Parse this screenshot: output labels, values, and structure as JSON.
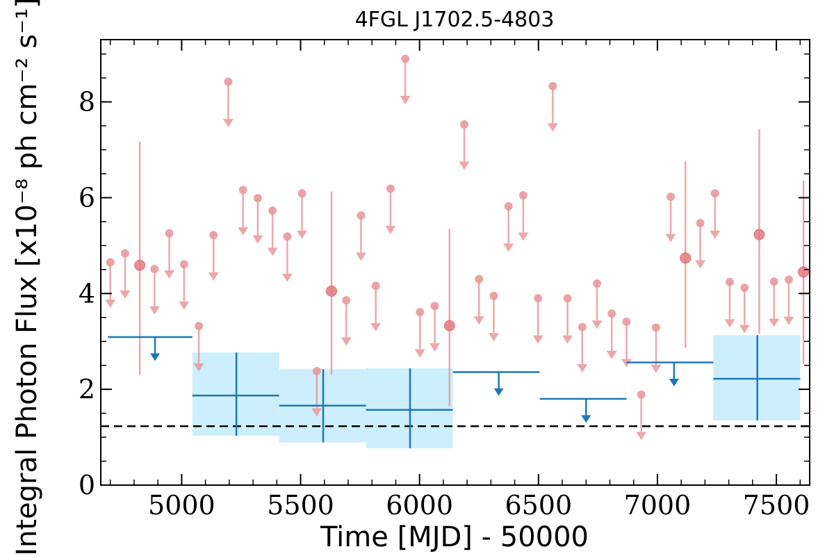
{
  "chart_data": {
    "type": "scatter",
    "title": "4FGL J1702.5-4803",
    "xlabel": "Time [MJD] - 50000",
    "ylabel": "Integral Photon Flux [x10⁻⁸ ph cm⁻² s⁻¹]",
    "xlim": [
      4660,
      7640
    ],
    "ylim": [
      0,
      9.3
    ],
    "xticks": [
      5000,
      5500,
      6000,
      6500,
      7000,
      7500
    ],
    "xtick_labels": [
      "5000",
      "5500",
      "6000",
      "6500",
      "7000",
      "7500"
    ],
    "yticks": [
      0,
      2,
      4,
      6,
      8
    ],
    "ytick_labels": [
      "0",
      "2",
      "4",
      "6",
      "8"
    ],
    "reference_line": 1.23,
    "colors": {
      "short_bins": "#e89a9e",
      "short_bins_detection": "#e57b80",
      "long_bins": "#1f77b4",
      "long_bins_band": "#cdeefc",
      "reference_line": "#000000"
    },
    "series": [
      {
        "points": [
          {
            "x": 4700,
            "y": 4.65,
            "upper_limit": true
          },
          {
            "x": 4762,
            "y": 4.84,
            "upper_limit": true
          },
          {
            "x": 4824,
            "y": 4.59,
            "yerr": [
              2.3,
              7.17
            ]
          },
          {
            "x": 4886,
            "y": 4.51,
            "upper_limit": true
          },
          {
            "x": 4948,
            "y": 5.26,
            "upper_limit": true
          },
          {
            "x": 5010,
            "y": 4.61,
            "upper_limit": true
          },
          {
            "x": 5072,
            "y": 3.32,
            "upper_limit": true
          },
          {
            "x": 5134,
            "y": 5.22,
            "upper_limit": true
          },
          {
            "x": 5196,
            "y": 8.42,
            "upper_limit": true
          },
          {
            "x": 5258,
            "y": 6.16,
            "upper_limit": true
          },
          {
            "x": 5320,
            "y": 5.99,
            "upper_limit": true
          },
          {
            "x": 5382,
            "y": 5.73,
            "upper_limit": true
          },
          {
            "x": 5444,
            "y": 5.19,
            "upper_limit": true
          },
          {
            "x": 5506,
            "y": 6.09,
            "upper_limit": true
          },
          {
            "x": 5568,
            "y": 2.38,
            "upper_limit": true
          },
          {
            "x": 5630,
            "y": 4.05,
            "yerr": [
              2.3,
              6.13
            ]
          },
          {
            "x": 5692,
            "y": 3.86,
            "upper_limit": true
          },
          {
            "x": 5754,
            "y": 5.63,
            "upper_limit": true
          },
          {
            "x": 5816,
            "y": 4.16,
            "upper_limit": true
          },
          {
            "x": 5878,
            "y": 6.19,
            "upper_limit": true
          },
          {
            "x": 5940,
            "y": 8.9,
            "upper_limit": true
          },
          {
            "x": 6002,
            "y": 3.61,
            "upper_limit": true
          },
          {
            "x": 6064,
            "y": 3.74,
            "upper_limit": true
          },
          {
            "x": 6126,
            "y": 3.33,
            "yerr": [
              1.65,
              5.35
            ]
          },
          {
            "x": 6188,
            "y": 7.53,
            "upper_limit": true
          },
          {
            "x": 6250,
            "y": 4.3,
            "upper_limit": true
          },
          {
            "x": 6312,
            "y": 3.95,
            "upper_limit": true
          },
          {
            "x": 6374,
            "y": 5.82,
            "upper_limit": true
          },
          {
            "x": 6436,
            "y": 6.05,
            "upper_limit": true
          },
          {
            "x": 6498,
            "y": 3.9,
            "upper_limit": true
          },
          {
            "x": 6560,
            "y": 8.33,
            "upper_limit": true
          },
          {
            "x": 6622,
            "y": 3.9,
            "upper_limit": true
          },
          {
            "x": 6684,
            "y": 3.3,
            "upper_limit": true
          },
          {
            "x": 6746,
            "y": 4.21,
            "upper_limit": true
          },
          {
            "x": 6808,
            "y": 3.58,
            "upper_limit": true
          },
          {
            "x": 6870,
            "y": 3.41,
            "upper_limit": true
          },
          {
            "x": 6932,
            "y": 1.89,
            "upper_limit": true
          },
          {
            "x": 6994,
            "y": 3.29,
            "upper_limit": true
          },
          {
            "x": 7056,
            "y": 6.02,
            "upper_limit": true
          },
          {
            "x": 7118,
            "y": 4.74,
            "yerr": [
              2.87,
              6.76
            ]
          },
          {
            "x": 7180,
            "y": 5.47,
            "upper_limit": true
          },
          {
            "x": 7242,
            "y": 6.09,
            "upper_limit": true
          },
          {
            "x": 7304,
            "y": 4.24,
            "upper_limit": true
          },
          {
            "x": 7366,
            "y": 4.12,
            "upper_limit": true
          },
          {
            "x": 7428,
            "y": 5.23,
            "yerr": [
              3.16,
              7.43
            ]
          },
          {
            "x": 7490,
            "y": 4.25,
            "upper_limit": true
          },
          {
            "x": 7552,
            "y": 4.29,
            "upper_limit": true
          },
          {
            "x": 7614,
            "y": 4.45,
            "yerr": [
              2.53,
              6.36
            ]
          }
        ]
      },
      {
        "points": [
          {
            "x0": 4690,
            "x1": 5045,
            "y": 3.09,
            "upper_limit": true,
            "arrow_x": 4888
          },
          {
            "x0": 5045,
            "x1": 5410,
            "y": 1.87,
            "yerr": [
              1.03,
              2.77
            ],
            "center_x": 5230
          },
          {
            "x0": 5410,
            "x1": 5775,
            "y": 1.66,
            "yerr": [
              0.89,
              2.42
            ],
            "center_x": 5595
          },
          {
            "x0": 5775,
            "x1": 6140,
            "y": 1.57,
            "yerr": [
              0.77,
              2.44
            ],
            "center_x": 5960
          },
          {
            "x0": 6140,
            "x1": 6505,
            "y": 2.36,
            "upper_limit": true,
            "arrow_x": 6333
          },
          {
            "x0": 6505,
            "x1": 6870,
            "y": 1.8,
            "upper_limit": true,
            "arrow_x": 6700
          },
          {
            "x0": 6870,
            "x1": 7235,
            "y": 2.56,
            "upper_limit": true,
            "arrow_x": 7070
          },
          {
            "x0": 7235,
            "x1": 7600,
            "y": 2.22,
            "yerr": [
              1.35,
              3.13
            ],
            "center_x": 7420
          }
        ]
      }
    ]
  }
}
